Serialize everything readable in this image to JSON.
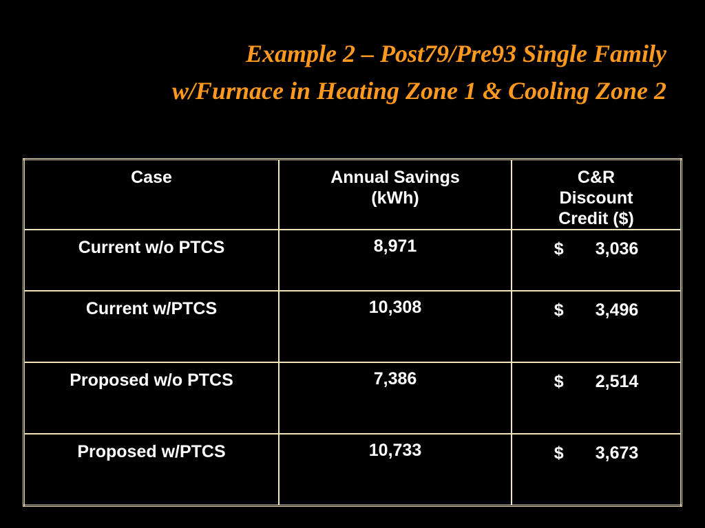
{
  "title": {
    "line1": "Example 2 – Post79/Pre93 Single Family",
    "line2": "w/Furnace in Heating Zone 1 & Cooling Zone 2"
  },
  "table": {
    "header": [
      "Case",
      "Annual Savings (kWh)",
      "C&R Discount Credit ($)"
    ],
    "rows": [
      {
        "case": "Current w/o PTCS",
        "savings": "8,971",
        "symbol": "$",
        "credit": "3,036"
      },
      {
        "case": "Current w/PTCS",
        "savings": "10,308",
        "symbol": "$",
        "credit": "3,496"
      },
      {
        "case": "Proposed w/o PTCS",
        "savings": "7,386",
        "symbol": "$",
        "credit": "2,514"
      },
      {
        "case": "Proposed w/PTCS",
        "savings": "10,733",
        "symbol": "$",
        "credit": "3,673"
      }
    ]
  }
}
